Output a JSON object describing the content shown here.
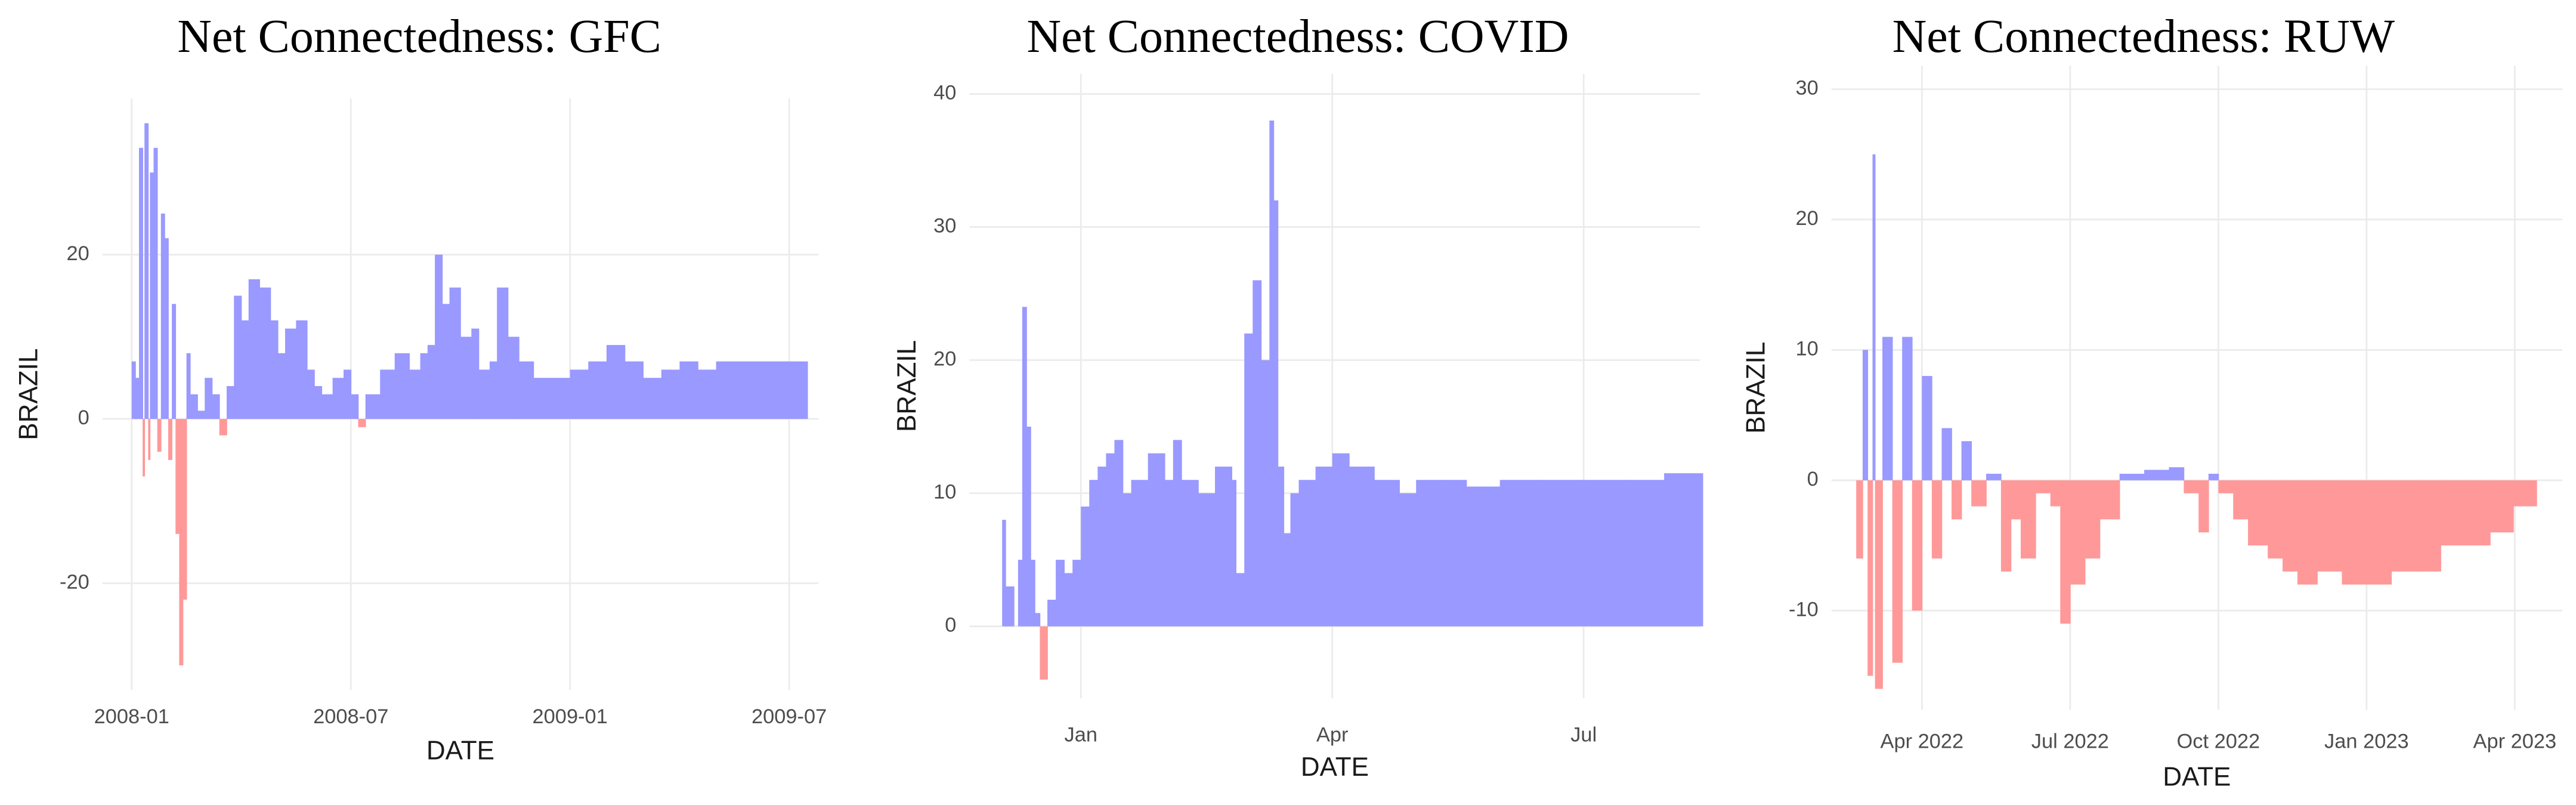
{
  "chart_data": [
    {
      "type": "area",
      "title": "Net Connectedness: GFC",
      "x_label": "DATE",
      "y_label": "BRAZIL",
      "color": "#9999ff",
      "negative_color": "#ff9999",
      "grid": true,
      "xlim": [
        0.2,
        19.8
      ],
      "xticks": [
        {
          "value": 1,
          "label": "2008-01"
        },
        {
          "value": 7,
          "label": "2008-07"
        },
        {
          "value": 13,
          "label": "2009-01"
        },
        {
          "value": 19,
          "label": "2009-07"
        }
      ],
      "ylim": [
        -33,
        39
      ],
      "yticks": [
        -20,
        0,
        20
      ],
      "x": [
        1.0,
        1.1,
        1.2,
        1.3,
        1.35,
        1.45,
        1.5,
        1.6,
        1.7,
        1.8,
        1.9,
        2.0,
        2.1,
        2.2,
        2.3,
        2.4,
        2.5,
        2.6,
        2.8,
        3.0,
        3.2,
        3.4,
        3.6,
        3.8,
        4.0,
        4.2,
        4.5,
        4.8,
        5.0,
        5.2,
        5.5,
        5.8,
        6.0,
        6.2,
        6.5,
        6.8,
        7.0,
        7.2,
        7.4,
        7.8,
        8.2,
        8.6,
        8.9,
        9.1,
        9.3,
        9.5,
        9.7,
        10.0,
        10.3,
        10.5,
        10.8,
        11.0,
        11.3,
        11.6,
        12.0,
        12.5,
        13.0,
        13.5,
        14.0,
        14.5,
        15.0,
        15.5,
        16.0,
        16.5,
        17.0,
        17.5,
        18.0,
        18.5,
        19.0
      ],
      "values": [
        7,
        5,
        33,
        -7,
        36,
        -5,
        30,
        33,
        -4,
        25,
        22,
        -5,
        14,
        -14,
        -30,
        -22,
        8,
        3,
        1,
        5,
        3,
        -2,
        4,
        15,
        12,
        17,
        16,
        12,
        8,
        11,
        12,
        6,
        4,
        3,
        5,
        6,
        3,
        -1,
        3,
        6,
        8,
        6,
        8,
        9,
        20,
        14,
        16,
        10,
        11,
        6,
        7,
        16,
        10,
        7,
        5,
        5,
        6,
        7,
        9,
        7,
        5,
        6,
        7,
        6,
        7,
        7,
        7,
        7,
        7
      ]
    },
    {
      "type": "area",
      "title": "Net Connectedness: COVID",
      "x_label": "DATE",
      "y_label": "BRAZIL",
      "color": "#9999ff",
      "negative_color": "#ff9999",
      "grid": true,
      "xlim": [
        -0.33,
        8.39
      ],
      "xticks": [
        {
          "value": 1,
          "label": "Jan"
        },
        {
          "value": 4,
          "label": "Apr"
        },
        {
          "value": 7,
          "label": "Jul"
        }
      ],
      "ylim": [
        -5.4,
        41.5
      ],
      "yticks": [
        0,
        10,
        20,
        30,
        40
      ],
      "x": [
        0.06,
        0.1,
        0.2,
        0.25,
        0.3,
        0.35,
        0.4,
        0.45,
        0.51,
        0.6,
        0.7,
        0.8,
        0.9,
        1.0,
        1.1,
        1.2,
        1.3,
        1.4,
        1.5,
        1.6,
        1.8,
        2.0,
        2.1,
        2.2,
        2.4,
        2.6,
        2.8,
        2.85,
        2.95,
        3.05,
        3.15,
        3.25,
        3.3,
        3.35,
        3.42,
        3.5,
        3.6,
        3.8,
        4.0,
        4.2,
        4.5,
        4.8,
        5.0,
        5.3,
        5.6,
        6.0,
        6.5,
        7.0,
        7.5,
        7.96
      ],
      "values": [
        8,
        3,
        0,
        5,
        24,
        15,
        5,
        1,
        -4,
        2,
        5,
        4,
        5,
        9,
        11,
        12,
        13,
        14,
        10,
        11,
        13,
        11,
        14,
        11,
        10,
        12,
        11,
        4,
        22,
        26,
        20,
        38,
        32,
        12,
        7,
        10,
        11,
        12,
        13,
        12,
        11,
        10,
        11,
        11,
        10.5,
        11,
        11,
        11,
        11,
        11.5
      ]
    },
    {
      "type": "area",
      "title": "Net Connectedness: RUW",
      "x_label": "DATE",
      "y_label": "BRAZIL",
      "color": "#9999ff",
      "negative_color": "#ff9999",
      "grid": true,
      "xlim": [
        2.17,
        16.96
      ],
      "xticks": [
        {
          "value": 4,
          "label": "Apr 2022"
        },
        {
          "value": 7,
          "label": "Jul 2022"
        },
        {
          "value": 10,
          "label": "Oct 2022"
        },
        {
          "value": 13,
          "label": "Jan 2023"
        },
        {
          "value": 16,
          "label": "Apr 2023"
        }
      ],
      "ylim": [
        -17.6,
        31.8
      ],
      "yticks": [
        -10,
        0,
        10,
        20,
        30
      ],
      "x": [
        2.67,
        2.8,
        2.9,
        3.0,
        3.05,
        3.2,
        3.4,
        3.6,
        3.8,
        4.0,
        4.2,
        4.4,
        4.6,
        4.8,
        5.0,
        5.3,
        5.6,
        5.8,
        6.0,
        6.3,
        6.6,
        6.8,
        7.0,
        7.3,
        7.6,
        8.0,
        8.5,
        9.0,
        9.3,
        9.6,
        9.8,
        10.0,
        10.3,
        10.6,
        11.0,
        11.3,
        11.6,
        12.0,
        12.5,
        13.0,
        13.5,
        14.0,
        14.5,
        15.0,
        15.5,
        15.97
      ],
      "values": [
        -6,
        10,
        -15,
        25,
        -16,
        11,
        -14,
        11,
        -10,
        8,
        -6,
        4,
        -3,
        3,
        -2,
        0.5,
        -7,
        -3,
        -6,
        -1,
        -2,
        -11,
        -8,
        -6,
        -3,
        0.5,
        0.8,
        1,
        -1,
        -4,
        0.5,
        -1,
        -3,
        -5,
        -6,
        -7,
        -8,
        -7,
        -8,
        -8,
        -7,
        -7,
        -5,
        -5,
        -4,
        -2
      ]
    }
  ]
}
